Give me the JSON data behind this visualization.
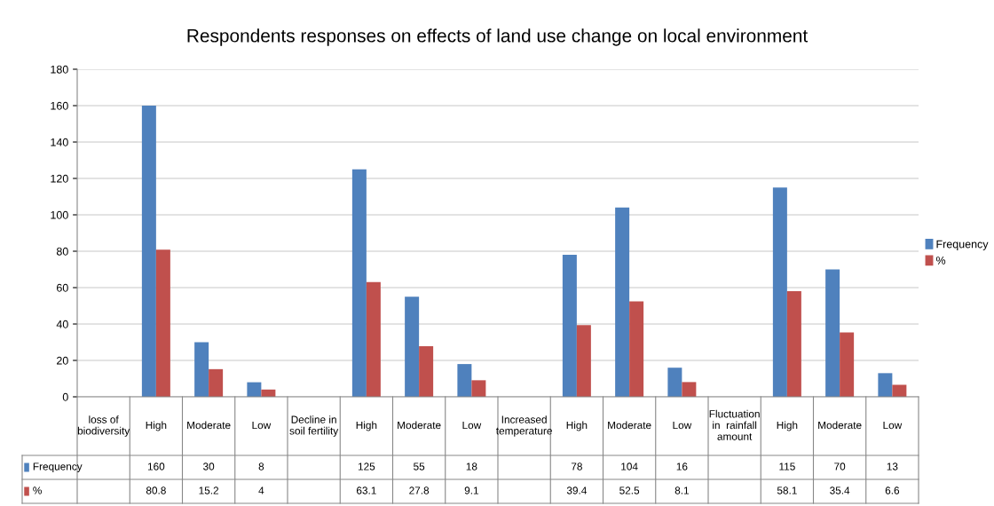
{
  "chart_data": {
    "type": "bar",
    "title": "Respondents responses on effects of land use change on local environment",
    "categories": [
      "loss of\nbiodiversity",
      "High",
      "Moderate",
      "Low",
      "Decline in\nsoil fertility",
      "High",
      "Moderate",
      "Low",
      "Increased\ntemperature",
      "High",
      "Moderate",
      "Low",
      "Fluctuation\nin  rainfall\namount",
      "High",
      "Moderate",
      "Low"
    ],
    "series": [
      {
        "name": "Frequency",
        "color": "#4f81bd",
        "values": [
          null,
          160,
          30,
          8,
          null,
          125,
          55,
          18,
          null,
          78,
          104,
          16,
          null,
          115,
          70,
          13
        ]
      },
      {
        "name": "%",
        "color": "#c0504d",
        "values": [
          null,
          80.8,
          15.2,
          4,
          null,
          63.1,
          27.8,
          9.1,
          null,
          39.4,
          52.5,
          8.1,
          null,
          58.1,
          35.4,
          6.6
        ]
      }
    ],
    "ylim": [
      0,
      180
    ],
    "yticks": [
      0,
      20,
      40,
      60,
      80,
      100,
      120,
      140,
      160,
      180
    ],
    "grid": "y",
    "legend": "right",
    "data_labels": true
  }
}
